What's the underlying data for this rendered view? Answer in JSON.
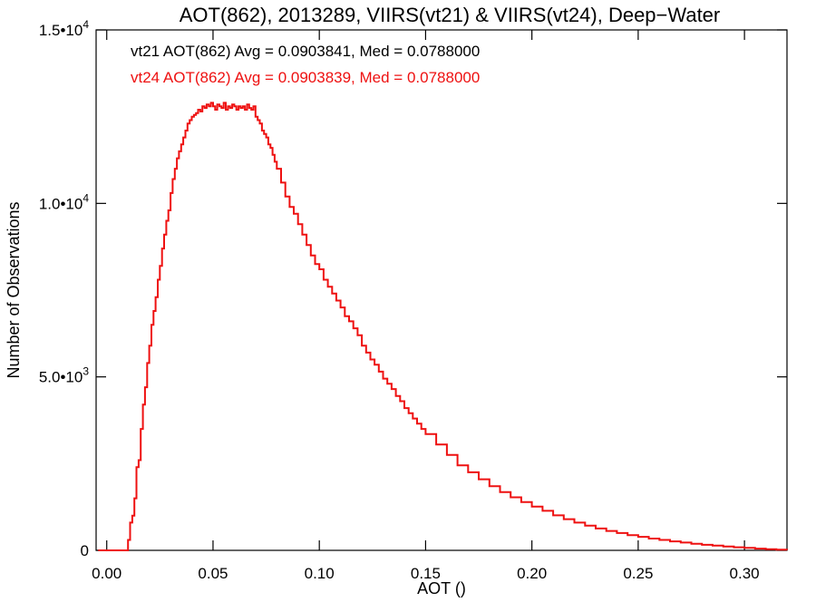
{
  "chart_data": {
    "type": "line",
    "title": "AOT(862), 2013289, VIIRS(vt21) & VIIRS(vt24), Deep−Water",
    "xlabel": "AOT ()",
    "ylabel": "Number of Observations",
    "xlim": [
      -0.005,
      0.32
    ],
    "ylim": [
      0,
      15000
    ],
    "x_ticks": [
      0.0,
      0.05,
      0.1,
      0.15,
      0.2,
      0.25,
      0.3
    ],
    "x_tick_labels": [
      "0.00",
      "0.05",
      "0.10",
      "0.15",
      "0.20",
      "0.25",
      "0.30"
    ],
    "y_ticks": [
      0,
      5000,
      10000,
      15000
    ],
    "y_tick_labels": [
      {
        "mantissa": "0",
        "exp": ""
      },
      {
        "mantissa": "5.0•10",
        "exp": "3"
      },
      {
        "mantissa": "1.0•10",
        "exp": "4"
      },
      {
        "mantissa": "1.5•10",
        "exp": "4"
      }
    ],
    "annotations": [
      {
        "text": "vt21 AOT(862) Avg = 0.0903841, Med = 0.0788000",
        "color": "#000000"
      },
      {
        "text": "vt24 AOT(862) Avg = 0.0903839, Med = 0.0788000",
        "color": "#ee1111"
      }
    ],
    "grid": false,
    "series": [
      {
        "color": "#ee1111",
        "x": [
          -0.004,
          0.004,
          0.008,
          0.01,
          0.011,
          0.012,
          0.013,
          0.014,
          0.015,
          0.016,
          0.017,
          0.018,
          0.019,
          0.02,
          0.021,
          0.022,
          0.023,
          0.024,
          0.025,
          0.026,
          0.027,
          0.028,
          0.029,
          0.03,
          0.031,
          0.032,
          0.033,
          0.034,
          0.035,
          0.036,
          0.037,
          0.038,
          0.039,
          0.04,
          0.041,
          0.042,
          0.043,
          0.044,
          0.045,
          0.046,
          0.047,
          0.048,
          0.049,
          0.05,
          0.051,
          0.052,
          0.053,
          0.054,
          0.055,
          0.056,
          0.057,
          0.058,
          0.059,
          0.06,
          0.061,
          0.062,
          0.063,
          0.064,
          0.065,
          0.066,
          0.067,
          0.068,
          0.069,
          0.07,
          0.071,
          0.072,
          0.073,
          0.074,
          0.075,
          0.076,
          0.077,
          0.078,
          0.079,
          0.08,
          0.082,
          0.084,
          0.086,
          0.088,
          0.09,
          0.092,
          0.094,
          0.096,
          0.098,
          0.1,
          0.102,
          0.104,
          0.106,
          0.108,
          0.11,
          0.112,
          0.114,
          0.116,
          0.118,
          0.12,
          0.122,
          0.124,
          0.126,
          0.128,
          0.13,
          0.132,
          0.134,
          0.136,
          0.138,
          0.14,
          0.142,
          0.144,
          0.146,
          0.148,
          0.15,
          0.155,
          0.16,
          0.165,
          0.17,
          0.175,
          0.18,
          0.185,
          0.19,
          0.195,
          0.2,
          0.205,
          0.21,
          0.215,
          0.22,
          0.225,
          0.23,
          0.235,
          0.24,
          0.245,
          0.25,
          0.255,
          0.26,
          0.265,
          0.27,
          0.275,
          0.28,
          0.285,
          0.29,
          0.295,
          0.3,
          0.305,
          0.31,
          0.315,
          0.32
        ],
        "y": [
          0,
          0,
          0,
          300,
          800,
          1000,
          1500,
          2400,
          2600,
          3500,
          4200,
          4700,
          5400,
          5900,
          6500,
          6900,
          7300,
          7800,
          8200,
          8700,
          9100,
          9500,
          9800,
          10300,
          10700,
          11000,
          11300,
          11500,
          11700,
          11900,
          12100,
          12300,
          12400,
          12500,
          12550,
          12600,
          12700,
          12650,
          12800,
          12750,
          12850,
          12800,
          12900,
          12800,
          12700,
          12850,
          12800,
          12750,
          12900,
          12700,
          12800,
          12750,
          12850,
          12800,
          12700,
          12800,
          12750,
          12800,
          12700,
          12850,
          12750,
          12700,
          12800,
          12500,
          12400,
          12300,
          12100,
          12000,
          11900,
          11700,
          11600,
          11400,
          11200,
          11000,
          10600,
          10200,
          9900,
          9700,
          9400,
          9100,
          8800,
          8500,
          8250,
          8100,
          7800,
          7600,
          7400,
          7200,
          7000,
          6750,
          6600,
          6400,
          6200,
          5900,
          5700,
          5500,
          5350,
          5150,
          4950,
          4800,
          4650,
          4450,
          4300,
          4100,
          3950,
          3800,
          3650,
          3500,
          3350,
          3050,
          2750,
          2450,
          2250,
          2050,
          1850,
          1680,
          1530,
          1390,
          1260,
          1140,
          1010,
          900,
          800,
          710,
          630,
          560,
          500,
          440,
          390,
          340,
          300,
          260,
          225,
          190,
          160,
          135,
          110,
          90,
          70,
          50,
          35,
          20,
          10
        ]
      }
    ]
  }
}
